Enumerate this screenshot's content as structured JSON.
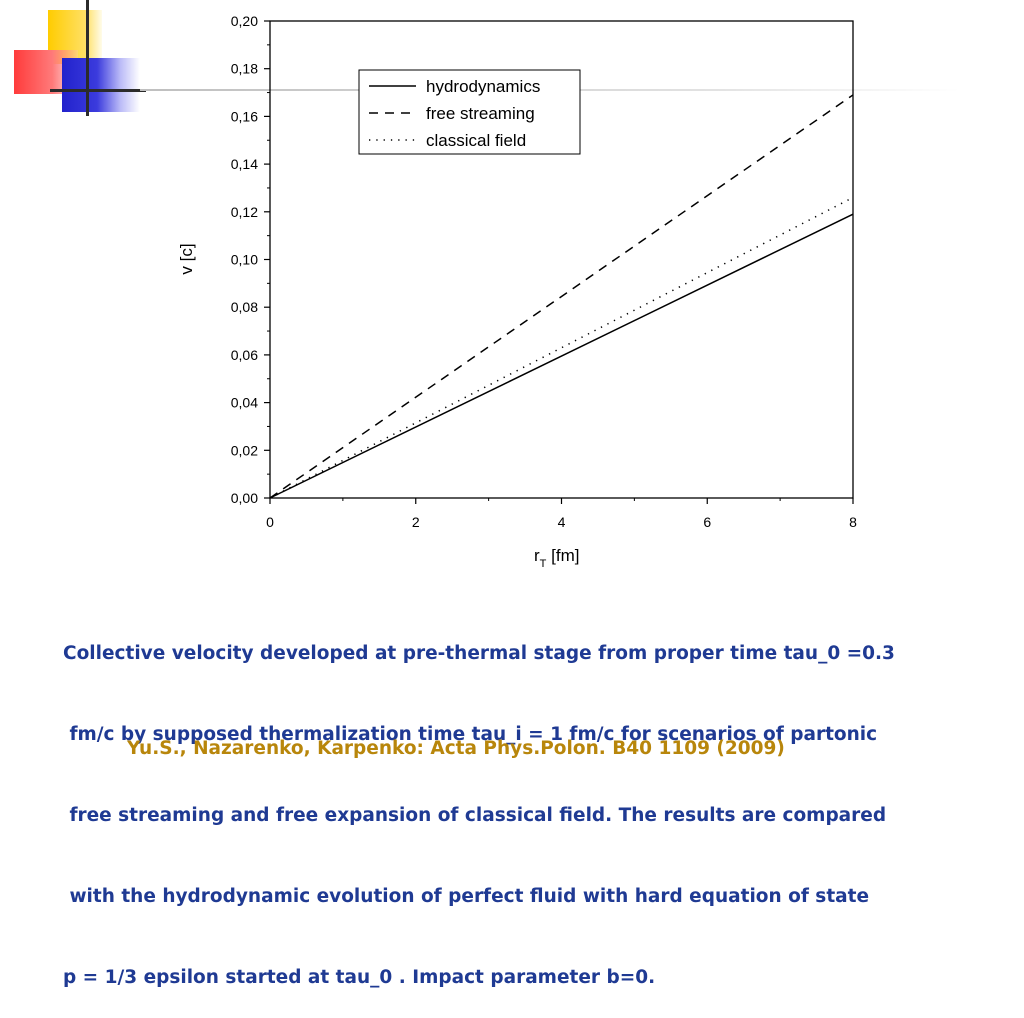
{
  "chart_data": {
    "type": "line",
    "xlabel": "r",
    "xlabel_subscript": "T",
    "xlabel_unit": " [fm]",
    "ylabel": "v [c]",
    "xlim": [
      0,
      8
    ],
    "ylim": [
      0,
      0.2
    ],
    "x_ticks": [
      "0",
      "2",
      "4",
      "6",
      "8"
    ],
    "y_ticks": [
      "0,00",
      "0,02",
      "0,04",
      "0,06",
      "0,08",
      "0,10",
      "0,12",
      "0,14",
      "0,16",
      "0,18",
      "0,20"
    ],
    "grid": false,
    "legend_position": "top-center",
    "series": [
      {
        "name": "hydrodynamics",
        "style": "solid",
        "x": [
          0,
          8
        ],
        "y": [
          0,
          0.119
        ]
      },
      {
        "name": "free streaming",
        "style": "dashed",
        "x": [
          0,
          8
        ],
        "y": [
          0,
          0.169
        ]
      },
      {
        "name": "classical field",
        "style": "dotted",
        "x": [
          0,
          8
        ],
        "y": [
          0,
          0.126
        ]
      }
    ]
  },
  "caption": {
    "lines": [
      "Collective velocity developed at pre-thermal stage from proper time tau_0 =0.3",
      " fm/c by supposed thermalization time tau_i = 1 fm/c for scenarios of partonic",
      " free streaming and free expansion of classical field. The results are compared",
      " with the hydrodynamic evolution of perfect fluid with hard equation of state",
      "p = 1/3 epsilon started at tau_0 . Impact parameter b=0."
    ]
  },
  "citation": "Yu.S., Nazarenko, Karpenko: Acta Phys.Polon. B40 1109 (2009)",
  "colors": {
    "caption": "#1f3a93",
    "citation": "#b8860b",
    "plot_lines": "#000000"
  }
}
